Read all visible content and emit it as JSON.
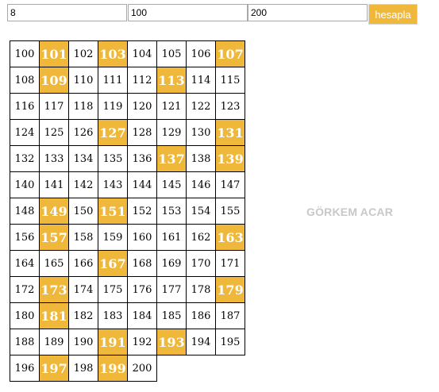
{
  "inputs": {
    "columns": "8",
    "start": "100",
    "end": "200"
  },
  "button_label": "hesapla",
  "watermark": "GÖRKEM ACAR",
  "highlight_color": "#f0b83a",
  "grid": {
    "columns": 8,
    "cells": [
      {
        "v": "100",
        "p": false
      },
      {
        "v": "101",
        "p": true
      },
      {
        "v": "102",
        "p": false
      },
      {
        "v": "103",
        "p": true
      },
      {
        "v": "104",
        "p": false
      },
      {
        "v": "105",
        "p": false
      },
      {
        "v": "106",
        "p": false
      },
      {
        "v": "107",
        "p": true
      },
      {
        "v": "108",
        "p": false
      },
      {
        "v": "109",
        "p": true
      },
      {
        "v": "110",
        "p": false
      },
      {
        "v": "111",
        "p": false
      },
      {
        "v": "112",
        "p": false
      },
      {
        "v": "113",
        "p": true
      },
      {
        "v": "114",
        "p": false
      },
      {
        "v": "115",
        "p": false
      },
      {
        "v": "116",
        "p": false
      },
      {
        "v": "117",
        "p": false
      },
      {
        "v": "118",
        "p": false
      },
      {
        "v": "119",
        "p": false
      },
      {
        "v": "120",
        "p": false
      },
      {
        "v": "121",
        "p": false
      },
      {
        "v": "122",
        "p": false
      },
      {
        "v": "123",
        "p": false
      },
      {
        "v": "124",
        "p": false
      },
      {
        "v": "125",
        "p": false
      },
      {
        "v": "126",
        "p": false
      },
      {
        "v": "127",
        "p": true
      },
      {
        "v": "128",
        "p": false
      },
      {
        "v": "129",
        "p": false
      },
      {
        "v": "130",
        "p": false
      },
      {
        "v": "131",
        "p": true
      },
      {
        "v": "132",
        "p": false
      },
      {
        "v": "133",
        "p": false
      },
      {
        "v": "134",
        "p": false
      },
      {
        "v": "135",
        "p": false
      },
      {
        "v": "136",
        "p": false
      },
      {
        "v": "137",
        "p": true
      },
      {
        "v": "138",
        "p": false
      },
      {
        "v": "139",
        "p": true
      },
      {
        "v": "140",
        "p": false
      },
      {
        "v": "141",
        "p": false
      },
      {
        "v": "142",
        "p": false
      },
      {
        "v": "143",
        "p": false
      },
      {
        "v": "144",
        "p": false
      },
      {
        "v": "145",
        "p": false
      },
      {
        "v": "146",
        "p": false
      },
      {
        "v": "147",
        "p": false
      },
      {
        "v": "148",
        "p": false
      },
      {
        "v": "149",
        "p": true
      },
      {
        "v": "150",
        "p": false
      },
      {
        "v": "151",
        "p": true
      },
      {
        "v": "152",
        "p": false
      },
      {
        "v": "153",
        "p": false
      },
      {
        "v": "154",
        "p": false
      },
      {
        "v": "155",
        "p": false
      },
      {
        "v": "156",
        "p": false
      },
      {
        "v": "157",
        "p": true
      },
      {
        "v": "158",
        "p": false
      },
      {
        "v": "159",
        "p": false
      },
      {
        "v": "160",
        "p": false
      },
      {
        "v": "161",
        "p": false
      },
      {
        "v": "162",
        "p": false
      },
      {
        "v": "163",
        "p": true
      },
      {
        "v": "164",
        "p": false
      },
      {
        "v": "165",
        "p": false
      },
      {
        "v": "166",
        "p": false
      },
      {
        "v": "167",
        "p": true
      },
      {
        "v": "168",
        "p": false
      },
      {
        "v": "169",
        "p": false
      },
      {
        "v": "170",
        "p": false
      },
      {
        "v": "171",
        "p": false
      },
      {
        "v": "172",
        "p": false
      },
      {
        "v": "173",
        "p": true
      },
      {
        "v": "174",
        "p": false
      },
      {
        "v": "175",
        "p": false
      },
      {
        "v": "176",
        "p": false
      },
      {
        "v": "177",
        "p": false
      },
      {
        "v": "178",
        "p": false
      },
      {
        "v": "179",
        "p": true
      },
      {
        "v": "180",
        "p": false
      },
      {
        "v": "181",
        "p": true
      },
      {
        "v": "182",
        "p": false
      },
      {
        "v": "183",
        "p": false
      },
      {
        "v": "184",
        "p": false
      },
      {
        "v": "185",
        "p": false
      },
      {
        "v": "186",
        "p": false
      },
      {
        "v": "187",
        "p": false
      },
      {
        "v": "188",
        "p": false
      },
      {
        "v": "189",
        "p": false
      },
      {
        "v": "190",
        "p": false
      },
      {
        "v": "191",
        "p": true
      },
      {
        "v": "192",
        "p": false
      },
      {
        "v": "193",
        "p": true
      },
      {
        "v": "194",
        "p": false
      },
      {
        "v": "195",
        "p": false
      },
      {
        "v": "196",
        "p": false
      },
      {
        "v": "197",
        "p": true
      },
      {
        "v": "198",
        "p": false
      },
      {
        "v": "199",
        "p": true
      },
      {
        "v": "200",
        "p": false
      }
    ]
  }
}
